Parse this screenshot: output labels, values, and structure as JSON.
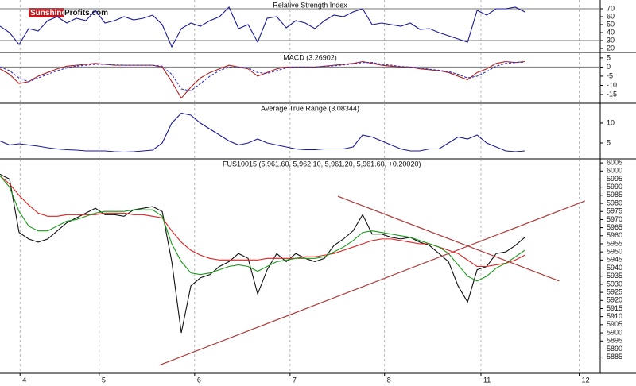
{
  "logo": {
    "brand": "Sunshine",
    "site": "Profits.com"
  },
  "chart_data": [
    {
      "type": "line",
      "title": "Relative Strength Index",
      "ylim": [
        15,
        81
      ],
      "yticks": [
        20,
        30,
        40,
        50,
        60,
        70
      ],
      "levels": [
        30,
        70
      ],
      "grid": true,
      "x": [
        0,
        0.1,
        0.2,
        0.3,
        0.4,
        0.5,
        0.6,
        0.7,
        0.8,
        0.9,
        1,
        1.1,
        1.2,
        1.3,
        1.4,
        1.5,
        1.6,
        1.7,
        1.8,
        1.9,
        2,
        2.1,
        2.2,
        2.3,
        2.4,
        2.5,
        2.6,
        2.7,
        2.8,
        2.9,
        3,
        3.1,
        3.2,
        3.3,
        3.4,
        3.5,
        3.6,
        3.7,
        3.8,
        3.9,
        4,
        4.1,
        4.2,
        4.3,
        4.4,
        4.5,
        4.6,
        4.7,
        4.8,
        4.9,
        5,
        5.1,
        5.2,
        5.3,
        5.4,
        5.5
      ],
      "series": [
        {
          "color": "#1a1a99",
          "values": [
            48,
            40,
            25,
            45,
            42,
            55,
            60,
            52,
            58,
            55,
            68,
            52,
            55,
            60,
            56,
            58,
            62,
            50,
            22,
            45,
            52,
            48,
            55,
            60,
            72,
            45,
            50,
            28,
            58,
            60,
            46,
            55,
            52,
            45,
            55,
            62,
            60,
            66,
            70,
            50,
            52,
            50,
            48,
            52,
            44,
            45,
            40,
            36,
            32,
            28,
            68,
            62,
            70,
            70,
            72,
            66
          ]
        }
      ]
    },
    {
      "type": "line",
      "title": "MACD (3.26902)",
      "ylim": [
        -19.8,
        8
      ],
      "yticks": [
        -15,
        -10,
        -5,
        0,
        5
      ],
      "levels": [
        0
      ],
      "grid": true,
      "x": [
        0,
        0.1,
        0.2,
        0.3,
        0.4,
        0.5,
        0.6,
        0.7,
        0.8,
        0.9,
        1,
        1.1,
        1.2,
        1.3,
        1.4,
        1.5,
        1.6,
        1.7,
        1.8,
        1.9,
        2,
        2.1,
        2.2,
        2.3,
        2.4,
        2.5,
        2.6,
        2.7,
        2.8,
        2.9,
        3,
        3.1,
        3.2,
        3.3,
        3.4,
        3.5,
        3.6,
        3.7,
        3.8,
        3.9,
        4,
        4.1,
        4.2,
        4.3,
        4.4,
        4.5,
        4.6,
        4.7,
        4.8,
        4.9,
        5,
        5.1,
        5.2,
        5.3,
        5.4,
        5.5
      ],
      "series": [
        {
          "color": "#b02020",
          "values": [
            -1,
            -4,
            -9,
            -8,
            -5,
            -3,
            -1,
            0.5,
            1,
            1.5,
            2,
            1.5,
            1,
            1,
            1,
            1,
            1,
            0,
            -8,
            -17,
            -11,
            -6,
            -3,
            -1,
            1,
            0,
            -1,
            -5,
            -3,
            -1,
            0,
            0,
            0,
            0,
            0.5,
            1,
            1.5,
            2,
            3,
            2,
            1,
            0.5,
            0,
            0,
            -1,
            -1.5,
            -2,
            -3,
            -5,
            -7,
            -3,
            -1,
            2,
            3,
            2.5,
            3
          ]
        },
        {
          "color": "#3030c0",
          "style": "dashed",
          "values": [
            0,
            -2,
            -6,
            -8,
            -6,
            -4,
            -2,
            -0.5,
            0.5,
            1,
            1.5,
            1.5,
            1.2,
            1,
            1,
            1,
            1,
            0.5,
            -4,
            -12,
            -13,
            -9,
            -5,
            -2,
            0,
            0,
            -0.5,
            -3,
            -3.5,
            -2,
            -0.5,
            0,
            0,
            0,
            0.3,
            0.7,
            1.2,
            1.7,
            2.5,
            2.5,
            1.5,
            1,
            0.3,
            0,
            -0.5,
            -1.2,
            -1.8,
            -2.5,
            -4,
            -6,
            -5,
            -2.5,
            0.5,
            2,
            2.5,
            2.7
          ]
        }
      ]
    },
    {
      "type": "line",
      "title": "Average True Range (3.08344)",
      "ylim": [
        1,
        15
      ],
      "yticks": [
        5,
        10
      ],
      "grid": true,
      "x": [
        0,
        0.1,
        0.2,
        0.3,
        0.4,
        0.5,
        0.6,
        0.7,
        0.8,
        0.9,
        1,
        1.1,
        1.2,
        1.3,
        1.4,
        1.5,
        1.6,
        1.7,
        1.8,
        1.9,
        2,
        2.1,
        2.2,
        2.3,
        2.4,
        2.5,
        2.6,
        2.7,
        2.8,
        2.9,
        3,
        3.1,
        3.2,
        3.3,
        3.4,
        3.5,
        3.6,
        3.7,
        3.8,
        3.9,
        4,
        4.1,
        4.2,
        4.3,
        4.4,
        4.5,
        4.6,
        4.7,
        4.8,
        4.9,
        5,
        5.1,
        5.2,
        5.3,
        5.4,
        5.5
      ],
      "series": [
        {
          "color": "#1a1a99",
          "values": [
            5.5,
            4.5,
            4.8,
            4.5,
            4.2,
            3.8,
            3.5,
            3.3,
            3.2,
            3,
            3,
            3,
            2.8,
            2.7,
            2.8,
            3,
            3.2,
            5,
            10,
            12.5,
            12,
            10,
            8.5,
            7,
            5.5,
            4.5,
            5,
            6,
            5,
            4.5,
            4,
            3.5,
            3.3,
            3.3,
            3.5,
            3.5,
            3.5,
            4,
            7,
            6.5,
            5.5,
            4.5,
            3.5,
            3,
            3,
            3.5,
            3.5,
            5,
            6.5,
            6,
            7,
            5,
            4,
            3,
            2.8,
            3
          ]
        }
      ]
    },
    {
      "type": "line",
      "title": "FUS10015 (5,961.60, 5,962.10, 5,961.20, 5,961.60, +0.20020)",
      "ylim": [
        5875,
        6007.5
      ],
      "yticks": [
        5885,
        5890,
        5895,
        5900,
        5905,
        5910,
        5915,
        5920,
        5925,
        5930,
        5935,
        5940,
        5945,
        5950,
        5955,
        5960,
        5965,
        5970,
        5975,
        5980,
        5985,
        5990,
        5995,
        6000,
        6005
      ],
      "xlim": [
        0,
        6.29
      ],
      "xticks": [
        {
          "value": 0.21,
          "label": "4"
        },
        {
          "value": 1.04,
          "label": "5"
        },
        {
          "value": 2.04,
          "label": "6"
        },
        {
          "value": 3.04,
          "label": "7"
        },
        {
          "value": 4.03,
          "label": "8"
        },
        {
          "value": 5.04,
          "label": "11"
        },
        {
          "value": 6.07,
          "label": "12"
        }
      ],
      "grid": true,
      "x": [
        0,
        0.1,
        0.2,
        0.3,
        0.4,
        0.5,
        0.6,
        0.7,
        0.8,
        0.9,
        1,
        1.1,
        1.2,
        1.3,
        1.4,
        1.5,
        1.6,
        1.7,
        1.8,
        1.9,
        2,
        2.1,
        2.2,
        2.3,
        2.4,
        2.5,
        2.6,
        2.7,
        2.8,
        2.9,
        3,
        3.1,
        3.2,
        3.3,
        3.4,
        3.5,
        3.6,
        3.7,
        3.8,
        3.9,
        4,
        4.1,
        4.2,
        4.3,
        4.4,
        4.5,
        4.6,
        4.7,
        4.8,
        4.9,
        5,
        5.1,
        5.2,
        5.3,
        5.4,
        5.5
      ],
      "series": [
        {
          "color": "#111111",
          "values": [
            5998,
            5995,
            5962,
            5958,
            5956,
            5958,
            5963,
            5968,
            5971,
            5974,
            5977,
            5973,
            5973,
            5972,
            5976,
            5977,
            5978,
            5975,
            5944,
            5900,
            5929,
            5934,
            5936,
            5941,
            5944,
            5949,
            5946,
            5924,
            5939,
            5949,
            5944,
            5949,
            5946,
            5944,
            5946,
            5954,
            5958,
            5963,
            5973,
            5961,
            5961,
            5959,
            5958,
            5959,
            5956,
            5954,
            5949,
            5944,
            5929,
            5919,
            5939,
            5941,
            5949,
            5950,
            5954,
            5959
          ]
        },
        {
          "color": "#e02020",
          "values": [
            5997,
            5992,
            5985,
            5979,
            5974,
            5972,
            5972,
            5973,
            5973,
            5973,
            5973,
            5974,
            5974,
            5974,
            5973,
            5973,
            5972,
            5971,
            5963,
            5956,
            5951,
            5948,
            5946,
            5945,
            5945,
            5945,
            5945,
            5945,
            5946,
            5946,
            5946,
            5946,
            5947,
            5947,
            5948,
            5949,
            5951,
            5953,
            5955,
            5957,
            5958,
            5958,
            5957,
            5956,
            5955,
            5955,
            5953,
            5951,
            5949,
            5945,
            5941,
            5941,
            5942,
            5943,
            5945,
            5948
          ]
        },
        {
          "color": "#1a9a1a",
          "values": [
            5997,
            5990,
            5975,
            5966,
            5963,
            5963,
            5966,
            5969,
            5970,
            5972,
            5974,
            5975,
            5975,
            5975,
            5976,
            5976,
            5976,
            5972,
            5955,
            5944,
            5937,
            5936,
            5937,
            5939,
            5941,
            5942,
            5941,
            5938,
            5941,
            5944,
            5945,
            5946,
            5946,
            5946,
            5947,
            5950,
            5953,
            5957,
            5962,
            5963,
            5962,
            5961,
            5960,
            5959,
            5957,
            5955,
            5953,
            5949,
            5942,
            5935,
            5932,
            5935,
            5940,
            5943,
            5947,
            5951
          ]
        }
      ],
      "trendlines": [
        {
          "color": "#b03a3a",
          "x": [
            3.54,
            5.86
          ],
          "y": [
            5984.4,
            5932
          ]
        },
        {
          "color": "#b03a3a",
          "x": [
            1.67,
            6.13
          ],
          "y": [
            5880,
            5981.5
          ]
        }
      ]
    }
  ]
}
